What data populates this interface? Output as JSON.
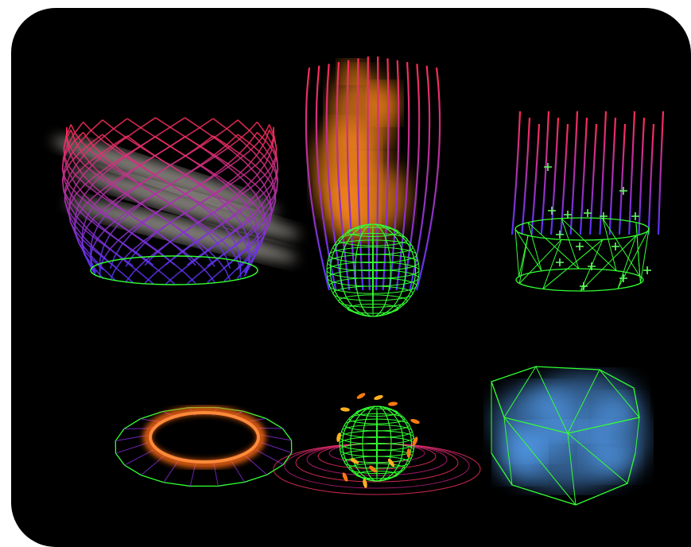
{
  "scene": {
    "background": "#000000",
    "wire_color": "#33ff33",
    "gradient_top": "#ff2d55",
    "gradient_bottom": "#5533ff",
    "smoke_color": "#e8e2d8",
    "fire_color": "#ff8a1c",
    "ring_color": "#ff6a14",
    "spark_color": "#66ff66",
    "mist_color": "#5aa8ff"
  },
  "panels": [
    {
      "id": "helix-cylinder",
      "emitter": "cylinder",
      "effect": "smoke-helix"
    },
    {
      "id": "sphere-fire",
      "emitter": "sphere",
      "effect": "fire-plume"
    },
    {
      "id": "cylinder-sparks",
      "emitter": "cylinder",
      "effect": "sparkles"
    },
    {
      "id": "disc-ring",
      "emitter": "disc",
      "effect": "glow-ring"
    },
    {
      "id": "sphere-orbit",
      "emitter": "sphere",
      "effect": "orbit-embers"
    },
    {
      "id": "box-mist",
      "emitter": "box",
      "effect": "blue-mist"
    }
  ]
}
